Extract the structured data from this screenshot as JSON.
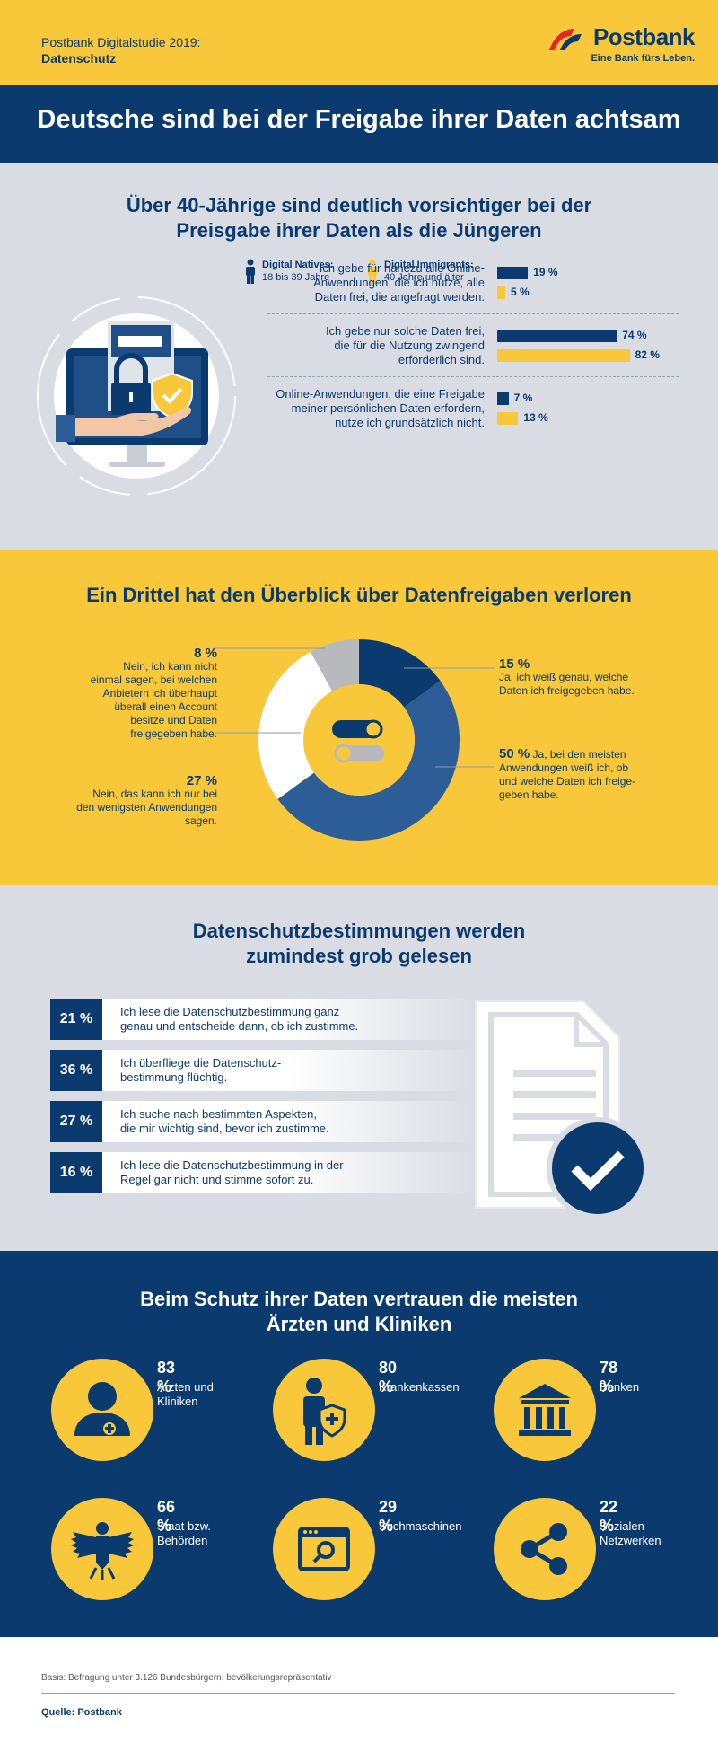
{
  "header": {
    "study_line1": "Postbank Digitalstudie 2019:",
    "study_line2": "Datenschutz",
    "logo_name": "Postbank",
    "logo_tagline": "Eine Bank fürs Leben."
  },
  "title": "Deutsche sind bei der Freigabe ihrer Daten achtsam",
  "section1": {
    "heading_line1": "Über 40-Jährige sind deutlich vorsichtiger bei der",
    "heading_line2": "Preisgabe ihrer Daten als die Jüngeren",
    "legend": [
      {
        "label": "Digital Natives:",
        "sub": "18 bis 39 Jahre",
        "color": "#0b3a6e"
      },
      {
        "label": "Digital Immigrants:",
        "sub": "40 Jahre und älter",
        "color": "#f8c73a"
      }
    ],
    "rows": [
      {
        "text_lines": [
          "Ich gebe für nahezu alle Online-",
          "Anwendungen, die ich nutze, alle",
          "Daten frei, die angefragt werden."
        ],
        "natives": 19,
        "immigrants": 5,
        "natives_label": "19 %",
        "immigrants_label": "5 %"
      },
      {
        "text_lines": [
          "Ich gebe nur solche Daten frei,",
          "die für die Nutzung zwingend",
          "erforderlich sind."
        ],
        "natives": 74,
        "immigrants": 82,
        "natives_label": "74 %",
        "immigrants_label": "82 %"
      },
      {
        "text_lines": [
          "Online-Anwendungen, die eine Freigabe",
          "meiner persönlichen Daten erfordern,",
          "nutze ich grundsätzlich nicht."
        ],
        "natives": 7,
        "immigrants": 13,
        "natives_label": "7 %",
        "immigrants_label": "13 %"
      }
    ]
  },
  "section2": {
    "heading": "Ein Drittel hat den Überblick über Datenfreigaben verloren",
    "chart_data": {
      "type": "pie",
      "title": "Ein Drittel hat den Überblick über Datenfreigaben verloren",
      "slices": [
        {
          "label": "Ja, ich weiß genau, welche Daten ich freigegeben habe.",
          "value": 15,
          "color": "#0b3a6e"
        },
        {
          "label": "Ja, bei den meisten Anwendungen weiß ich, ob und welche Daten ich freigegeben habe.",
          "value": 50,
          "color": "#2c5d96"
        },
        {
          "label": "Nein, das kann ich nur bei den wenigsten Anwendungen sagen.",
          "value": 27,
          "color": "#ffffff"
        },
        {
          "label": "Nein, ich kann nicht einmal sagen, bei welchen Anbietern ich überhaupt überall einen Account besitze und Daten freigegeben habe.",
          "value": 8,
          "color": "#b7b9bd"
        }
      ]
    },
    "annotations": {
      "a15": {
        "pct": "15 %",
        "lines": [
          "Ja, ich weiß genau, welche",
          "Daten ich freigegeben habe."
        ]
      },
      "a50": {
        "pct": "50 %",
        "first": "Ja, bei den meisten",
        "lines": [
          "Anwendungen weiß ich, ob",
          "und welche Daten ich freige-",
          "geben habe."
        ]
      },
      "a27": {
        "pct": "27 %",
        "lines": [
          "Nein, das kann ich nur bei",
          "den wenigsten Anwendungen",
          "sagen."
        ]
      },
      "a8": {
        "pct": "8 %",
        "lines": [
          "Nein, ich kann nicht",
          "einmal sagen, bei welchen",
          "Anbietern ich überhaupt",
          "überall einen Account",
          "besitze und Daten",
          "freigegeben habe."
        ]
      }
    }
  },
  "section3": {
    "heading_line1": "Datenschutzbestimmungen werden",
    "heading_line2": "zumindest grob gelesen",
    "rows": [
      {
        "pct": "21 %",
        "line1": "Ich lese die Datenschutzbestimmung ganz",
        "line2": "genau und entscheide dann, ob ich zustimme."
      },
      {
        "pct": "36 %",
        "line1": "Ich überfliege die Datenschutz-",
        "line2": "bestimmung flüchtig."
      },
      {
        "pct": "27 %",
        "line1": "Ich suche nach bestimmten Aspekten,",
        "line2": "die mir wichtig sind, bevor ich zustimme."
      },
      {
        "pct": "16 %",
        "line1": "Ich lese die Datenschutzbestimmung in der",
        "line2": "Regel gar nicht und stimme sofort zu."
      }
    ]
  },
  "section4": {
    "heading_line1": "Beim Schutz ihrer Daten vertrauen die meisten",
    "heading_line2": "Ärzten und Kliniken",
    "items": [
      {
        "pct": "83 %",
        "line1": "Ärzten und",
        "line2": "Kliniken",
        "icon": "doctor-icon"
      },
      {
        "pct": "80 %",
        "line1": "Krankenkassen",
        "line2": "",
        "icon": "health-insurance-icon"
      },
      {
        "pct": "78 %",
        "line1": "Banken",
        "line2": "",
        "icon": "bank-icon"
      },
      {
        "pct": "66 %",
        "line1": "Staat bzw.",
        "line2": "Behörden",
        "icon": "eagle-icon"
      },
      {
        "pct": "29 %",
        "line1": "Suchmaschinen",
        "line2": "",
        "icon": "search-window-icon"
      },
      {
        "pct": "22 %",
        "line1": "Sozialen",
        "line2": "Netzwerken",
        "icon": "share-icon"
      }
    ]
  },
  "footer": {
    "basis": "Basis: Befragung unter 3.126 Bundesbürgern, bevölkerungsrepräsentativ",
    "source": "Quelle: Postbank"
  },
  "colors": {
    "navy": "#0b3a6e",
    "yellow": "#f8c73a",
    "grey": "#d9dce3",
    "mid_blue": "#2c5d96"
  }
}
